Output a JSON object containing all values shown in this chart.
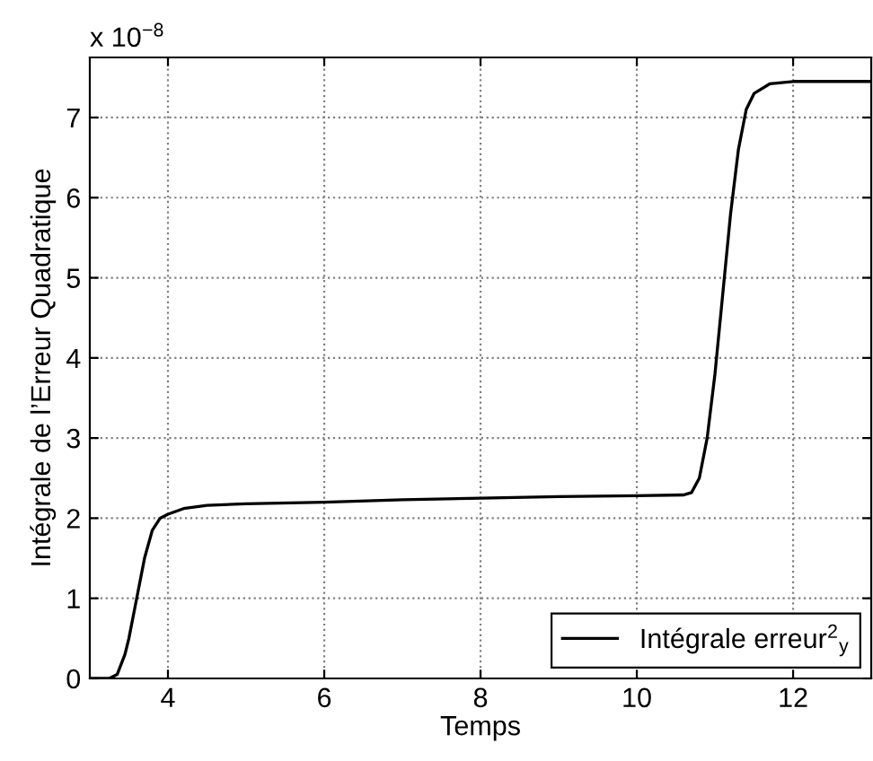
{
  "chart_data": {
    "type": "line",
    "xlabel": "Temps",
    "ylabel": "Intégrale de l’Erreur Quadratique",
    "annotations": [
      "x 10$^{−8}$"
    ],
    "xlim": [
      3,
      13
    ],
    "ylim": [
      0,
      7.75
    ],
    "xticks": [
      4,
      6,
      8,
      10,
      12
    ],
    "yticks": [
      0,
      1,
      2,
      3,
      4,
      5,
      6,
      7
    ],
    "grid": true,
    "legend": "bottom right",
    "line_style": "solid",
    "marker": "none",
    "series": [
      {
        "name": "Intégrale erreur$^{2}$$_{y}$",
        "color": "#000000",
        "x": [
          3.0,
          3.25,
          3.35,
          3.45,
          3.5,
          3.6,
          3.7,
          3.8,
          3.9,
          4.0,
          4.2,
          4.5,
          5,
          6,
          7,
          8,
          9,
          10,
          10.6,
          10.7,
          10.8,
          10.9,
          11.0,
          11.1,
          11.2,
          11.3,
          11.4,
          11.5,
          11.7,
          12,
          13
        ],
        "values": [
          0,
          0,
          0.05,
          0.3,
          0.5,
          1.0,
          1.5,
          1.85,
          2.0,
          2.05,
          2.12,
          2.16,
          2.18,
          2.2,
          2.23,
          2.25,
          2.27,
          2.28,
          2.29,
          2.32,
          2.5,
          3.0,
          3.8,
          4.8,
          5.8,
          6.6,
          7.1,
          7.3,
          7.42,
          7.45,
          7.45
        ]
      }
    ]
  }
}
